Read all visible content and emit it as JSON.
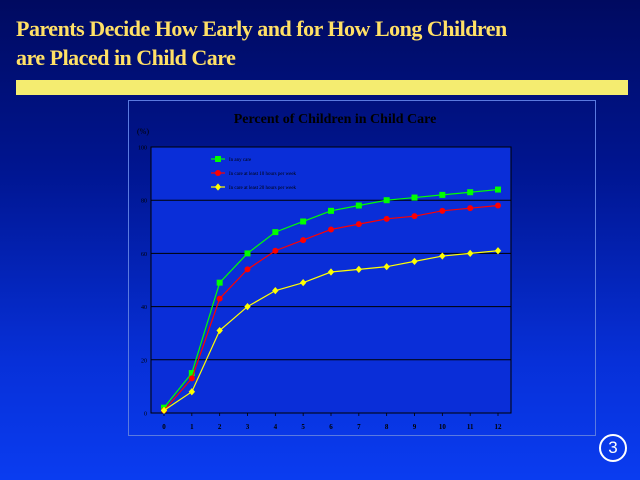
{
  "slide": {
    "title_line1": "Parents Decide How Early and for How Long Children",
    "title_line2": "are Placed in Child Care",
    "page_number": "3"
  },
  "colors": {
    "title_text": "#ffe066",
    "title_bar": "#f4ec70",
    "series_any": "#00ff00",
    "series_10h": "#ff0000",
    "series_20h": "#ffff00"
  },
  "chart_data": {
    "type": "line",
    "title": "Percent of Children in Child Care",
    "ylabel": "(%)",
    "xlabel": "",
    "ylim": [
      0,
      100
    ],
    "yticks": [
      0,
      20,
      40,
      60,
      80,
      100
    ],
    "grid": true,
    "legend_position": "top-left",
    "x": [
      0,
      1,
      2,
      3,
      4,
      5,
      6,
      7,
      8,
      9,
      10,
      11,
      12
    ],
    "series": [
      {
        "name": "In any care",
        "color": "#00ff00",
        "marker": "square",
        "values": [
          2,
          15,
          49,
          60,
          68,
          72,
          76,
          78,
          80,
          81,
          82,
          83,
          84
        ]
      },
      {
        "name": "In care at least 10 hours per week",
        "color": "#ff0000",
        "marker": "circle",
        "values": [
          1,
          13,
          43,
          54,
          61,
          65,
          69,
          71,
          73,
          74,
          76,
          77,
          78
        ]
      },
      {
        "name": "In care at least 20 hours per week",
        "color": "#ffff00",
        "marker": "diamond",
        "values": [
          1,
          8,
          31,
          40,
          46,
          49,
          53,
          54,
          55,
          57,
          59,
          60,
          61
        ]
      }
    ]
  }
}
